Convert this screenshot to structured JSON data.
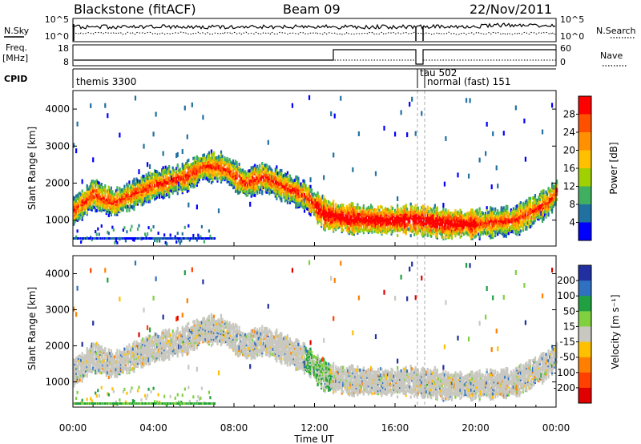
{
  "header": {
    "station": "Blackstone (fitACF)",
    "beam": "Beam 09",
    "date": "22/Nov/2011"
  },
  "top_panels": {
    "nsky_label": "N.Sky",
    "nsearch_label": "N.Search",
    "nsky_ticks": [
      "10^5",
      "10^0"
    ],
    "nsearch_ticks": [
      "10^5",
      "10^0"
    ],
    "freq_label": "Freq.",
    "freq_unit": "[MHz]",
    "freq_ticks": [
      "18",
      "8"
    ],
    "nave_label": "Nave",
    "nave_ticks": [
      "60",
      "0"
    ],
    "cpid_label": "CPID",
    "cpid_entries": [
      "themis 3300",
      "tau 502",
      "normal (fast) 151"
    ]
  },
  "chart_data": [
    {
      "type": "heatmap",
      "name": "power",
      "ylabel": "Slant Range [km]",
      "y_ticks": [
        1000,
        2000,
        3000,
        4000
      ],
      "ylim": [
        300,
        4500
      ],
      "xlim": [
        0,
        24
      ],
      "colorbar": {
        "label": "Power [dB]",
        "ticks": [
          "28",
          "24",
          "20",
          "16",
          "12",
          "8",
          "4"
        ],
        "colors": [
          "#ff0000",
          "#ff5000",
          "#ff9000",
          "#ffc000",
          "#a0d000",
          "#40b060",
          "#2070a0",
          "#0000ff"
        ]
      },
      "echo_band_km": [
        [
          0,
          1300
        ],
        [
          1,
          1750
        ],
        [
          2,
          1500
        ],
        [
          4,
          2000
        ],
        [
          5.5,
          2200
        ],
        [
          6.5,
          2500
        ],
        [
          7.5,
          2450
        ],
        [
          8.5,
          2050
        ],
        [
          9.5,
          2200
        ],
        [
          10.5,
          1950
        ],
        [
          11.5,
          1700
        ],
        [
          12.5,
          1200
        ],
        [
          13.5,
          1100
        ],
        [
          15,
          1050
        ],
        [
          17,
          1050
        ],
        [
          18.5,
          950
        ],
        [
          20,
          950
        ],
        [
          22,
          1050
        ],
        [
          23.5,
          1500
        ],
        [
          24,
          1800
        ]
      ]
    },
    {
      "type": "heatmap",
      "name": "velocity",
      "ylabel": "Slant Range [km]",
      "xlabel": "Time UT",
      "x_ticks": [
        "00:00",
        "04:00",
        "08:00",
        "12:00",
        "16:00",
        "20:00",
        "00:00"
      ],
      "y_ticks": [
        1000,
        2000,
        3000,
        4000
      ],
      "ylim": [
        300,
        4500
      ],
      "xlim": [
        0,
        24
      ],
      "colorbar": {
        "label": "Velocity [m s⁻¹]",
        "ticks": [
          "200",
          "100",
          "50",
          "15",
          "-15",
          "-50",
          "-100",
          "-200"
        ],
        "colors": [
          "#2030a0",
          "#3070c0",
          "#20a040",
          "#80d040",
          "#c8c8c0",
          "#ffc000",
          "#ff8000",
          "#ff4000",
          "#e00000"
        ]
      }
    }
  ]
}
